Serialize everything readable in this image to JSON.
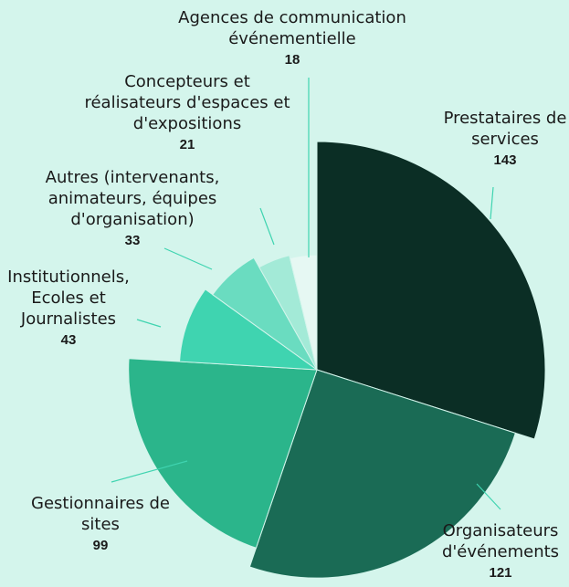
{
  "chart_data": {
    "type": "pie",
    "categories": [
      "Prestataires de services",
      "Organisateurs d'événements",
      "Gestionnaires de sites",
      "Institutionnels, Ecoles et Journalistes",
      "Autres (intervenants, animateurs, équipes d'organisation)",
      "Concepteurs et réalisateurs d'espaces et d'expositions",
      "Agences de communication événementielle"
    ],
    "values": [
      143,
      121,
      99,
      43,
      33,
      21,
      18
    ],
    "colors": [
      "#0b2e25",
      "#1a6b55",
      "#2bb58b",
      "#3fd4b0",
      "#6adcc0",
      "#a3ead7",
      "#e6f8f3"
    ]
  }
}
